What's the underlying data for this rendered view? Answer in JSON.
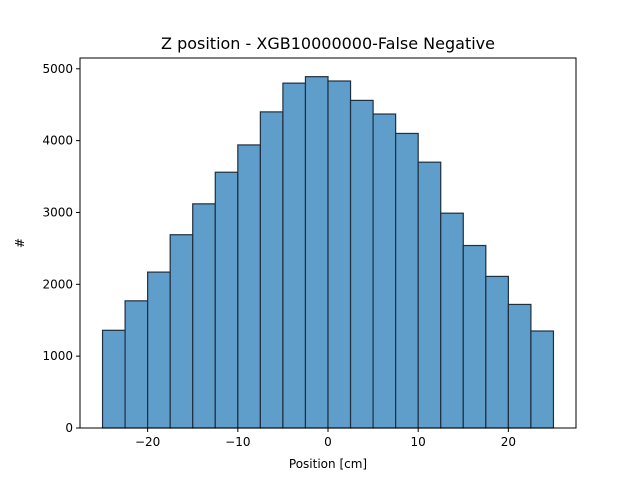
{
  "chart_data": {
    "type": "bar",
    "title": "Z position - XGB10000000-False Negative",
    "xlabel": "Position [cm]",
    "ylabel": "#",
    "xlim": [
      -27.5,
      27.5
    ],
    "ylim": [
      0,
      5150
    ],
    "x_ticks": [
      -20,
      -10,
      0,
      10,
      20
    ],
    "x_tick_labels": [
      "−20",
      "−10",
      "0",
      "10",
      "20"
    ],
    "y_ticks": [
      0,
      1000,
      2000,
      3000,
      4000,
      5000
    ],
    "y_tick_labels": [
      "0",
      "1000",
      "2000",
      "3000",
      "4000",
      "5000"
    ],
    "bin_edges": [
      -25,
      -22.5,
      -20,
      -17.5,
      -15,
      -12.5,
      -10,
      -7.5,
      -5,
      -2.5,
      0,
      2.5,
      5,
      7.5,
      10,
      12.5,
      15,
      17.5,
      20,
      22.5,
      25
    ],
    "values": [
      1360,
      1770,
      2170,
      2690,
      3120,
      3560,
      3940,
      4400,
      4800,
      4890,
      4830,
      4560,
      4370,
      4100,
      3700,
      2990,
      2540,
      2110,
      1720,
      1350
    ],
    "bar_color": "#5f9ecb",
    "edge_color": "#1f2f3f",
    "grid": false,
    "legend": "none"
  }
}
